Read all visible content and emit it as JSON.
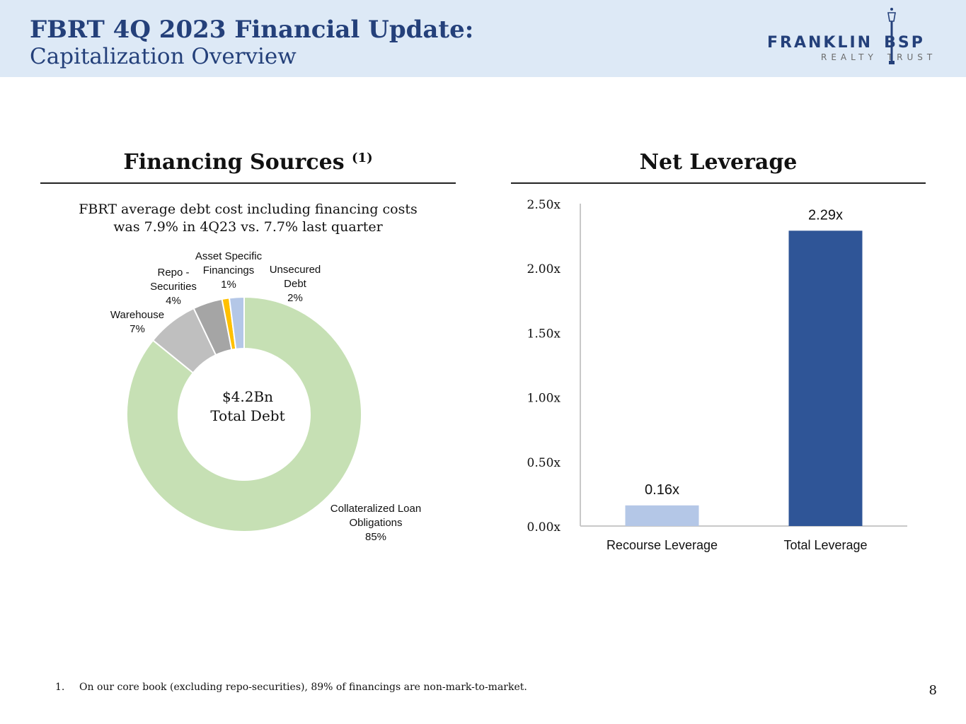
{
  "header": {
    "title": "FBRT 4Q 2023 Financial Update:",
    "subtitle": "Capitalization Overview",
    "logo_main_left": "FRANKLIN",
    "logo_main_right": "BSP",
    "logo_sub_left": "REALTY",
    "logo_sub_right": "TRUST",
    "brand_color": "#24407a"
  },
  "financing": {
    "title": "Financing Sources",
    "title_note": "(1)",
    "note_line1": "FBRT average debt cost including financing costs",
    "note_line2": "was 7.9% in 4Q23 vs. 7.7% last quarter",
    "center_line1": "$4.2Bn",
    "center_line2": "Total Debt"
  },
  "leverage": {
    "title": "Net Leverage"
  },
  "chart_data": [
    {
      "type": "pie",
      "title": "",
      "slices": [
        {
          "name": "Collateralized Loan Obligations",
          "value": 85,
          "label_lines": [
            "Collateralized Loan",
            "Obligations",
            "85%"
          ],
          "color": "#c6e0b4"
        },
        {
          "name": "Warehouse",
          "value": 7,
          "label_lines": [
            "Warehouse",
            "7%"
          ],
          "color": "#bfbfbf"
        },
        {
          "name": "Repo - Securities",
          "value": 4,
          "label_lines": [
            "Repo -",
            "Securities",
            "4%"
          ],
          "color": "#a5a5a5"
        },
        {
          "name": "Asset Specific Financings",
          "value": 1,
          "label_lines": [
            "Asset Specific",
            "Financings",
            "1%"
          ],
          "color": "#ffc000"
        },
        {
          "name": "Unsecured Debt",
          "value": 2,
          "label_lines": [
            "Unsecured",
            "Debt",
            "2%"
          ],
          "color": "#b4c7e7"
        }
      ]
    },
    {
      "type": "bar",
      "title": "",
      "categories": [
        "Recourse Leverage",
        "Total Leverage"
      ],
      "values": [
        0.16,
        2.29
      ],
      "value_labels": [
        "0.16x",
        "2.29x"
      ],
      "colors": [
        "#b4c7e7",
        "#2f5597"
      ],
      "ylim": [
        0,
        2.5
      ],
      "yticks": [
        0,
        0.5,
        1.0,
        1.5,
        2.0,
        2.5
      ],
      "ytick_labels": [
        "0.00x",
        "0.50x",
        "1.00x",
        "1.50x",
        "2.00x",
        "2.50x"
      ],
      "grid": false
    }
  ],
  "footnote": {
    "number": "1.",
    "text": "On our core book (excluding repo-securities), 89% of financings are non-mark-to-market."
  },
  "page_number": "8"
}
